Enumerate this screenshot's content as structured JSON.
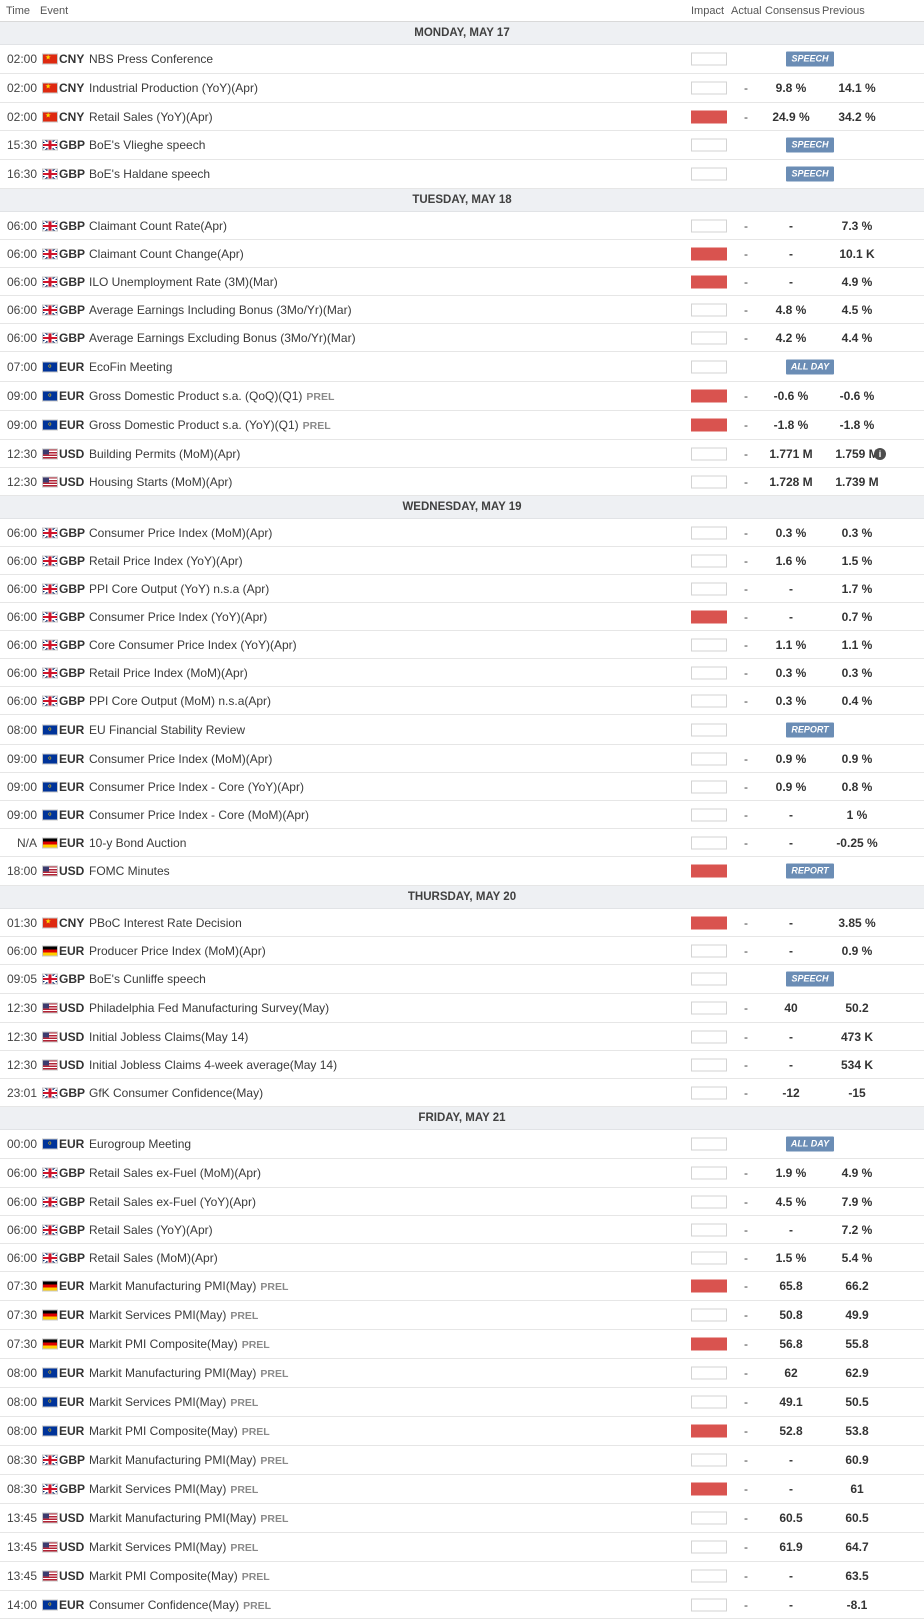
{
  "columns": {
    "time": "Time",
    "event": "Event",
    "impact": "Impact",
    "actual": "Actual",
    "consensus": "Consensus",
    "previous": "Previous"
  },
  "impact_colors": {
    "medium": "#e8912e",
    "high": "#d9534f"
  },
  "tag_color": "#6b8db5",
  "days": [
    {
      "label": "MONDAY, MAY 17",
      "events": [
        {
          "time": "02:00",
          "flag": "cny",
          "cur": "CNY",
          "event": "NBS Press Conference",
          "prel": "",
          "impact": "medium",
          "actual": "",
          "consensus": "",
          "previous": "",
          "tag": "SPEECH"
        },
        {
          "time": "02:00",
          "flag": "cny",
          "cur": "CNY",
          "event": "Industrial Production (YoY)(Apr)",
          "prel": "",
          "impact": "medium",
          "actual": "-",
          "consensus": "9.8 %",
          "previous": "14.1 %",
          "tag": ""
        },
        {
          "time": "02:00",
          "flag": "cny",
          "cur": "CNY",
          "event": "Retail Sales (YoY)(Apr)",
          "prel": "",
          "impact": "high",
          "actual": "-",
          "consensus": "24.9 %",
          "previous": "34.2 %",
          "tag": ""
        },
        {
          "time": "15:30",
          "flag": "gbp",
          "cur": "GBP",
          "event": "BoE's Vlieghe speech",
          "prel": "",
          "impact": "medium",
          "actual": "",
          "consensus": "",
          "previous": "",
          "tag": "SPEECH"
        },
        {
          "time": "16:30",
          "flag": "gbp",
          "cur": "GBP",
          "event": "BoE's Haldane speech",
          "prel": "",
          "impact": "medium",
          "actual": "",
          "consensus": "",
          "previous": "",
          "tag": "SPEECH"
        }
      ]
    },
    {
      "label": "TUESDAY, MAY 18",
      "events": [
        {
          "time": "06:00",
          "flag": "gbp",
          "cur": "GBP",
          "event": "Claimant Count Rate(Apr)",
          "prel": "",
          "impact": "medium",
          "actual": "-",
          "consensus": "-",
          "previous": "7.3 %",
          "tag": ""
        },
        {
          "time": "06:00",
          "flag": "gbp",
          "cur": "GBP",
          "event": "Claimant Count Change(Apr)",
          "prel": "",
          "impact": "high",
          "actual": "-",
          "consensus": "-",
          "previous": "10.1 K",
          "tag": ""
        },
        {
          "time": "06:00",
          "flag": "gbp",
          "cur": "GBP",
          "event": "ILO Unemployment Rate (3M)(Mar)",
          "prel": "",
          "impact": "high",
          "actual": "-",
          "consensus": "-",
          "previous": "4.9 %",
          "tag": ""
        },
        {
          "time": "06:00",
          "flag": "gbp",
          "cur": "GBP",
          "event": "Average Earnings Including Bonus (3Mo/Yr)(Mar)",
          "prel": "",
          "impact": "medium",
          "actual": "-",
          "consensus": "4.8 %",
          "previous": "4.5 %",
          "tag": ""
        },
        {
          "time": "06:00",
          "flag": "gbp",
          "cur": "GBP",
          "event": "Average Earnings Excluding Bonus (3Mo/Yr)(Mar)",
          "prel": "",
          "impact": "medium",
          "actual": "-",
          "consensus": "4.2 %",
          "previous": "4.4 %",
          "tag": ""
        },
        {
          "time": "07:00",
          "flag": "eur",
          "cur": "EUR",
          "event": "EcoFin Meeting",
          "prel": "",
          "impact": "medium",
          "actual": "",
          "consensus": "",
          "previous": "",
          "tag": "ALL DAY"
        },
        {
          "time": "09:00",
          "flag": "eur",
          "cur": "EUR",
          "event": "Gross Domestic Product s.a. (QoQ)(Q1)",
          "prel": "PREL",
          "impact": "high",
          "actual": "-",
          "consensus": "-0.6 %",
          "previous": "-0.6 %",
          "tag": ""
        },
        {
          "time": "09:00",
          "flag": "eur",
          "cur": "EUR",
          "event": "Gross Domestic Product s.a. (YoY)(Q1)",
          "prel": "PREL",
          "impact": "high",
          "actual": "-",
          "consensus": "-1.8 %",
          "previous": "-1.8 %",
          "tag": ""
        },
        {
          "time": "12:30",
          "flag": "usd",
          "cur": "USD",
          "event": "Building Permits (MoM)(Apr)",
          "prel": "",
          "impact": "medium",
          "actual": "-",
          "consensus": "1.771 M",
          "previous": "1.759 M",
          "tag": "",
          "info": true
        },
        {
          "time": "12:30",
          "flag": "usd",
          "cur": "USD",
          "event": "Housing Starts (MoM)(Apr)",
          "prel": "",
          "impact": "medium",
          "actual": "-",
          "consensus": "1.728 M",
          "previous": "1.739 M",
          "tag": ""
        }
      ]
    },
    {
      "label": "WEDNESDAY, MAY 19",
      "events": [
        {
          "time": "06:00",
          "flag": "gbp",
          "cur": "GBP",
          "event": "Consumer Price Index (MoM)(Apr)",
          "prel": "",
          "impact": "medium",
          "actual": "-",
          "consensus": "0.3 %",
          "previous": "0.3 %",
          "tag": ""
        },
        {
          "time": "06:00",
          "flag": "gbp",
          "cur": "GBP",
          "event": "Retail Price Index (YoY)(Apr)",
          "prel": "",
          "impact": "medium",
          "actual": "-",
          "consensus": "1.6 %",
          "previous": "1.5 %",
          "tag": ""
        },
        {
          "time": "06:00",
          "flag": "gbp",
          "cur": "GBP",
          "event": "PPI Core Output (YoY) n.s.a (Apr)",
          "prel": "",
          "impact": "medium",
          "actual": "-",
          "consensus": "-",
          "previous": "1.7 %",
          "tag": ""
        },
        {
          "time": "06:00",
          "flag": "gbp",
          "cur": "GBP",
          "event": "Consumer Price Index (YoY)(Apr)",
          "prel": "",
          "impact": "high",
          "actual": "-",
          "consensus": "-",
          "previous": "0.7 %",
          "tag": ""
        },
        {
          "time": "06:00",
          "flag": "gbp",
          "cur": "GBP",
          "event": "Core Consumer Price Index (YoY)(Apr)",
          "prel": "",
          "impact": "medium",
          "actual": "-",
          "consensus": "1.1 %",
          "previous": "1.1 %",
          "tag": ""
        },
        {
          "time": "06:00",
          "flag": "gbp",
          "cur": "GBP",
          "event": "Retail Price Index (MoM)(Apr)",
          "prel": "",
          "impact": "medium",
          "actual": "-",
          "consensus": "0.3 %",
          "previous": "0.3 %",
          "tag": ""
        },
        {
          "time": "06:00",
          "flag": "gbp",
          "cur": "GBP",
          "event": "PPI Core Output (MoM) n.s.a(Apr)",
          "prel": "",
          "impact": "medium",
          "actual": "-",
          "consensus": "0.3 %",
          "previous": "0.4 %",
          "tag": ""
        },
        {
          "time": "08:00",
          "flag": "eur",
          "cur": "EUR",
          "event": "EU Financial Stability Review",
          "prel": "",
          "impact": "medium",
          "actual": "",
          "consensus": "",
          "previous": "",
          "tag": "REPORT"
        },
        {
          "time": "09:00",
          "flag": "eur",
          "cur": "EUR",
          "event": "Consumer Price Index (MoM)(Apr)",
          "prel": "",
          "impact": "medium",
          "actual": "-",
          "consensus": "0.9 %",
          "previous": "0.9 %",
          "tag": ""
        },
        {
          "time": "09:00",
          "flag": "eur",
          "cur": "EUR",
          "event": "Consumer Price Index - Core (YoY)(Apr)",
          "prel": "",
          "impact": "medium",
          "actual": "-",
          "consensus": "0.9 %",
          "previous": "0.8 %",
          "tag": ""
        },
        {
          "time": "09:00",
          "flag": "eur",
          "cur": "EUR",
          "event": "Consumer Price Index - Core (MoM)(Apr)",
          "prel": "",
          "impact": "medium",
          "actual": "-",
          "consensus": "-",
          "previous": "1 %",
          "tag": ""
        },
        {
          "time": "N/A",
          "flag": "deu",
          "cur": "EUR",
          "event": "10-y Bond Auction",
          "prel": "",
          "impact": "medium",
          "actual": "-",
          "consensus": "-",
          "previous": "-0.25 %",
          "tag": ""
        },
        {
          "time": "18:00",
          "flag": "usd",
          "cur": "USD",
          "event": "FOMC Minutes",
          "prel": "",
          "impact": "high",
          "actual": "",
          "consensus": "",
          "previous": "",
          "tag": "REPORT"
        }
      ]
    },
    {
      "label": "THURSDAY, MAY 20",
      "events": [
        {
          "time": "01:30",
          "flag": "cny",
          "cur": "CNY",
          "event": "PBoC Interest Rate Decision",
          "prel": "",
          "impact": "high",
          "actual": "-",
          "consensus": "-",
          "previous": "3.85 %",
          "tag": ""
        },
        {
          "time": "06:00",
          "flag": "deu",
          "cur": "EUR",
          "event": "Producer Price Index (MoM)(Apr)",
          "prel": "",
          "impact": "medium",
          "actual": "-",
          "consensus": "-",
          "previous": "0.9 %",
          "tag": ""
        },
        {
          "time": "09:05",
          "flag": "gbp",
          "cur": "GBP",
          "event": "BoE's Cunliffe speech",
          "prel": "",
          "impact": "medium",
          "actual": "",
          "consensus": "",
          "previous": "",
          "tag": "SPEECH"
        },
        {
          "time": "12:30",
          "flag": "usd",
          "cur": "USD",
          "event": "Philadelphia Fed Manufacturing Survey(May)",
          "prel": "",
          "impact": "medium",
          "actual": "-",
          "consensus": "40",
          "previous": "50.2",
          "tag": ""
        },
        {
          "time": "12:30",
          "flag": "usd",
          "cur": "USD",
          "event": "Initial Jobless Claims(May 14)",
          "prel": "",
          "impact": "medium",
          "actual": "-",
          "consensus": "-",
          "previous": "473 K",
          "tag": ""
        },
        {
          "time": "12:30",
          "flag": "usd",
          "cur": "USD",
          "event": "Initial Jobless Claims 4-week average(May 14)",
          "prel": "",
          "impact": "medium",
          "actual": "-",
          "consensus": "-",
          "previous": "534 K",
          "tag": ""
        },
        {
          "time": "23:01",
          "flag": "gbp",
          "cur": "GBP",
          "event": "GfK Consumer Confidence(May)",
          "prel": "",
          "impact": "medium",
          "actual": "-",
          "consensus": "-12",
          "previous": "-15",
          "tag": ""
        }
      ]
    },
    {
      "label": "FRIDAY, MAY 21",
      "events": [
        {
          "time": "00:00",
          "flag": "eur",
          "cur": "EUR",
          "event": "Eurogroup Meeting",
          "prel": "",
          "impact": "medium",
          "actual": "",
          "consensus": "",
          "previous": "",
          "tag": "ALL DAY"
        },
        {
          "time": "06:00",
          "flag": "gbp",
          "cur": "GBP",
          "event": "Retail Sales ex-Fuel (MoM)(Apr)",
          "prel": "",
          "impact": "medium",
          "actual": "-",
          "consensus": "1.9 %",
          "previous": "4.9 %",
          "tag": ""
        },
        {
          "time": "06:00",
          "flag": "gbp",
          "cur": "GBP",
          "event": "Retail Sales ex-Fuel (YoY)(Apr)",
          "prel": "",
          "impact": "medium",
          "actual": "-",
          "consensus": "4.5 %",
          "previous": "7.9 %",
          "tag": ""
        },
        {
          "time": "06:00",
          "flag": "gbp",
          "cur": "GBP",
          "event": "Retail Sales (YoY)(Apr)",
          "prel": "",
          "impact": "medium",
          "actual": "-",
          "consensus": "-",
          "previous": "7.2 %",
          "tag": ""
        },
        {
          "time": "06:00",
          "flag": "gbp",
          "cur": "GBP",
          "event": "Retail Sales (MoM)(Apr)",
          "prel": "",
          "impact": "medium",
          "actual": "-",
          "consensus": "1.5 %",
          "previous": "5.4 %",
          "tag": ""
        },
        {
          "time": "07:30",
          "flag": "deu",
          "cur": "EUR",
          "event": "Markit Manufacturing PMI(May)",
          "prel": "PREL",
          "impact": "high",
          "actual": "-",
          "consensus": "65.8",
          "previous": "66.2",
          "tag": ""
        },
        {
          "time": "07:30",
          "flag": "deu",
          "cur": "EUR",
          "event": "Markit Services PMI(May)",
          "prel": "PREL",
          "impact": "medium",
          "actual": "-",
          "consensus": "50.8",
          "previous": "49.9",
          "tag": ""
        },
        {
          "time": "07:30",
          "flag": "deu",
          "cur": "EUR",
          "event": "Markit PMI Composite(May)",
          "prel": "PREL",
          "impact": "high",
          "actual": "-",
          "consensus": "56.8",
          "previous": "55.8",
          "tag": ""
        },
        {
          "time": "08:00",
          "flag": "eur",
          "cur": "EUR",
          "event": "Markit Manufacturing PMI(May)",
          "prel": "PREL",
          "impact": "medium",
          "actual": "-",
          "consensus": "62",
          "previous": "62.9",
          "tag": ""
        },
        {
          "time": "08:00",
          "flag": "eur",
          "cur": "EUR",
          "event": "Markit Services PMI(May)",
          "prel": "PREL",
          "impact": "medium",
          "actual": "-",
          "consensus": "49.1",
          "previous": "50.5",
          "tag": ""
        },
        {
          "time": "08:00",
          "flag": "eur",
          "cur": "EUR",
          "event": "Markit PMI Composite(May)",
          "prel": "PREL",
          "impact": "high",
          "actual": "-",
          "consensus": "52.8",
          "previous": "53.8",
          "tag": ""
        },
        {
          "time": "08:30",
          "flag": "gbp",
          "cur": "GBP",
          "event": "Markit Manufacturing PMI(May)",
          "prel": "PREL",
          "impact": "medium",
          "actual": "-",
          "consensus": "-",
          "previous": "60.9",
          "tag": ""
        },
        {
          "time": "08:30",
          "flag": "gbp",
          "cur": "GBP",
          "event": "Markit Services PMI(May)",
          "prel": "PREL",
          "impact": "high",
          "actual": "-",
          "consensus": "-",
          "previous": "61",
          "tag": ""
        },
        {
          "time": "13:45",
          "flag": "usd",
          "cur": "USD",
          "event": "Markit Manufacturing PMI(May)",
          "prel": "PREL",
          "impact": "medium",
          "actual": "-",
          "consensus": "60.5",
          "previous": "60.5",
          "tag": ""
        },
        {
          "time": "13:45",
          "flag": "usd",
          "cur": "USD",
          "event": "Markit Services PMI(May)",
          "prel": "PREL",
          "impact": "medium",
          "actual": "-",
          "consensus": "61.9",
          "previous": "64.7",
          "tag": ""
        },
        {
          "time": "13:45",
          "flag": "usd",
          "cur": "USD",
          "event": "Markit PMI Composite(May)",
          "prel": "PREL",
          "impact": "medium",
          "actual": "-",
          "consensus": "-",
          "previous": "63.5",
          "tag": ""
        },
        {
          "time": "14:00",
          "flag": "eur",
          "cur": "EUR",
          "event": "Consumer Confidence(May)",
          "prel": "PREL",
          "impact": "medium",
          "actual": "-",
          "consensus": "-",
          "previous": "-8.1",
          "tag": ""
        }
      ]
    }
  ]
}
